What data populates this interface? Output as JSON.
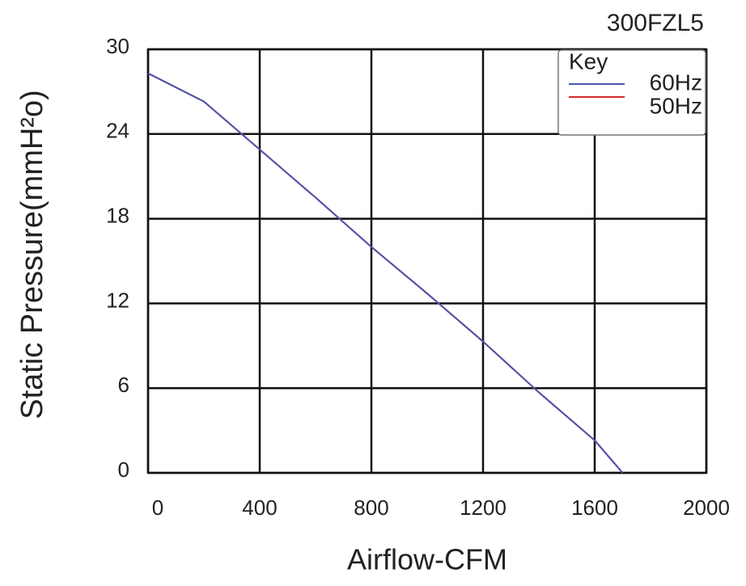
{
  "chart_data": {
    "type": "line",
    "title": "300FZL5",
    "x_label": "Airflow-CFM",
    "y_label": "Static Pressure(mmH²o)",
    "legend_title": "Key",
    "legend_position": "upper right",
    "grid": true,
    "x": [
      0,
      200,
      400,
      600,
      800,
      1000,
      1200,
      1400,
      1600,
      1700
    ],
    "series": [
      {
        "name": "60Hz",
        "color": "#4a55b0",
        "values": [
          28.3,
          26.3,
          22.9,
          19.5,
          16.0,
          12.7,
          9.3,
          5.7,
          2.3,
          0
        ]
      },
      {
        "name": "50Hz",
        "color": "#d42a2a",
        "values": [
          28.3,
          26.3,
          22.9,
          19.5,
          16.0,
          12.7,
          9.3,
          5.7,
          2.3,
          0
        ]
      }
    ],
    "xlim": [
      0,
      2000
    ],
    "xticks": [
      0,
      400,
      800,
      1200,
      1600,
      2000
    ],
    "ylim": [
      0,
      30
    ],
    "yticks": [
      0,
      6,
      12,
      18,
      24,
      30
    ]
  }
}
